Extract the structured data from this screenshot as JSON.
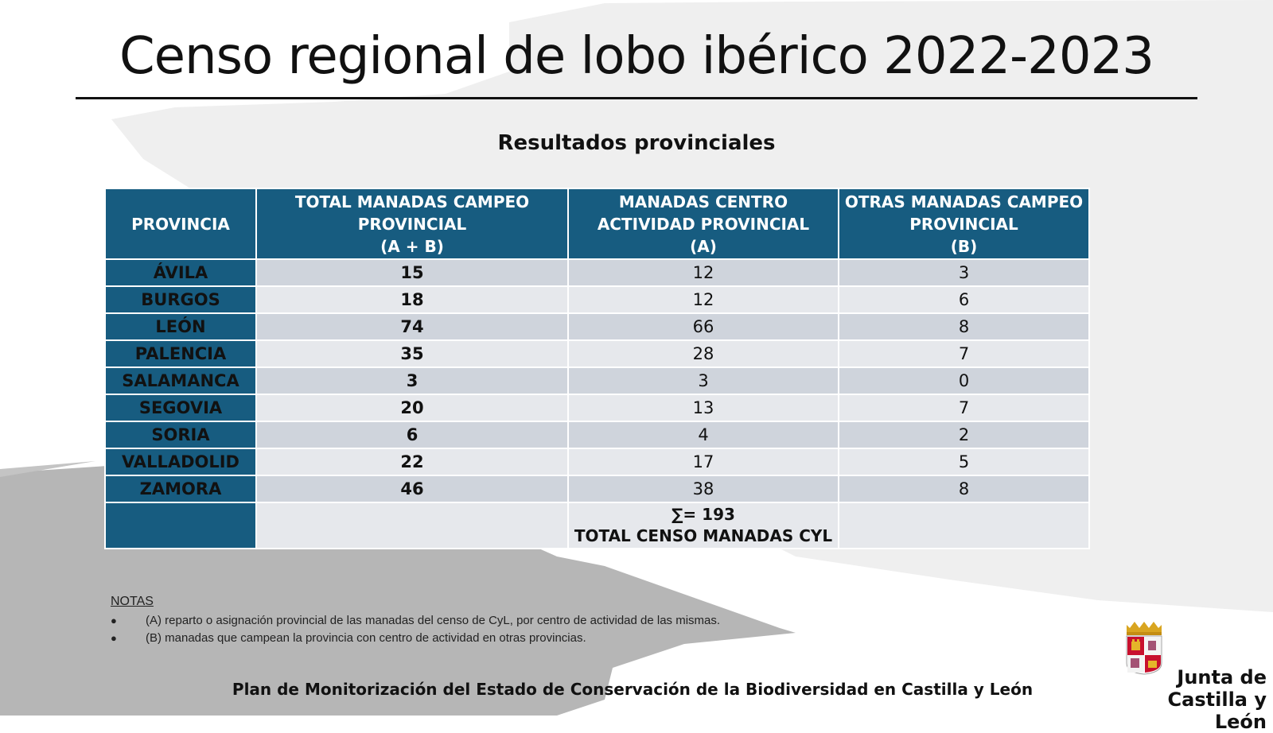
{
  "title": "Censo regional de lobo ibérico 2022-2023",
  "subtitle": "Resultados provinciales",
  "table": {
    "headers": [
      {
        "lines": [
          "PROVINCIA"
        ]
      },
      {
        "lines": [
          "TOTAL MANADAS CAMPEO",
          "PROVINCIAL",
          "(A + B)"
        ]
      },
      {
        "lines": [
          "MANADAS CENTRO",
          "ACTIVIDAD PROVINCIAL",
          "(A)"
        ]
      },
      {
        "lines": [
          "OTRAS MANADAS CAMPEO",
          "PROVINCIAL",
          "(B)"
        ]
      }
    ],
    "rows": [
      {
        "provincia": "ÁVILA",
        "total": "15",
        "a": "12",
        "b": "3"
      },
      {
        "provincia": "BURGOS",
        "total": "18",
        "a": "12",
        "b": "6"
      },
      {
        "provincia": "LEÓN",
        "total": "74",
        "a": "66",
        "b": "8"
      },
      {
        "provincia": "PALENCIA",
        "total": "35",
        "a": "28",
        "b": "7"
      },
      {
        "provincia": "SALAMANCA",
        "total": "3",
        "a": "3",
        "b": "0"
      },
      {
        "provincia": "SEGOVIA",
        "total": "20",
        "a": "13",
        "b": "7"
      },
      {
        "provincia": "SORIA",
        "total": "6",
        "a": "4",
        "b": "2"
      },
      {
        "provincia": "VALLADOLID",
        "total": "22",
        "a": "17",
        "b": "5"
      },
      {
        "provincia": "ZAMORA",
        "total": "46",
        "a": "38",
        "b": "8"
      }
    ],
    "sum_line": "∑= 193",
    "sum_label": "TOTAL CENSO MANADAS CYL"
  },
  "notes": {
    "title": "NOTAS",
    "items": [
      "(A) reparto o asignación provincial de las manadas del censo de CyL, por centro de actividad de las mismas.",
      "(B) manadas que campean la provincia con centro de actividad en otras provincias."
    ],
    "bullet": "●"
  },
  "footer": "Plan de Monitorización del Estado de Conservación de la Biodiversidad en Castilla y León",
  "logo": {
    "line1": "Junta de",
    "line2": "Castilla y León",
    "icon": "coat-of-arms-icon"
  },
  "colors": {
    "header_blue": "#175c80",
    "row_dark": "#cfd4dc",
    "row_light": "#e6e8ec",
    "background_gray": "#b5b5b5",
    "background_light": "#eeeeee"
  }
}
